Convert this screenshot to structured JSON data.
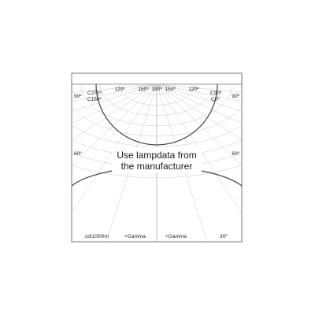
{
  "diagram": {
    "labels": {
      "left_90": "90º",
      "c270": "C270º",
      "c180": "C180º",
      "top_120_left": "120º",
      "top_150_left": "150º",
      "top_180": "180º",
      "top_150_right": "150º",
      "top_120_right": "120º",
      "c90": "C90º",
      "c0": "C0º",
      "right_90": "90º",
      "left_60": "60º",
      "right_60": "60º",
      "bottom_unit": "cd/1000lm",
      "bottom_gamma_left": "+Gamma",
      "bottom_gamma_right": "+Gamma",
      "bottom_30": "30º"
    },
    "message_line1": "Use lampdata from",
    "message_line2": "the manufacturer"
  }
}
